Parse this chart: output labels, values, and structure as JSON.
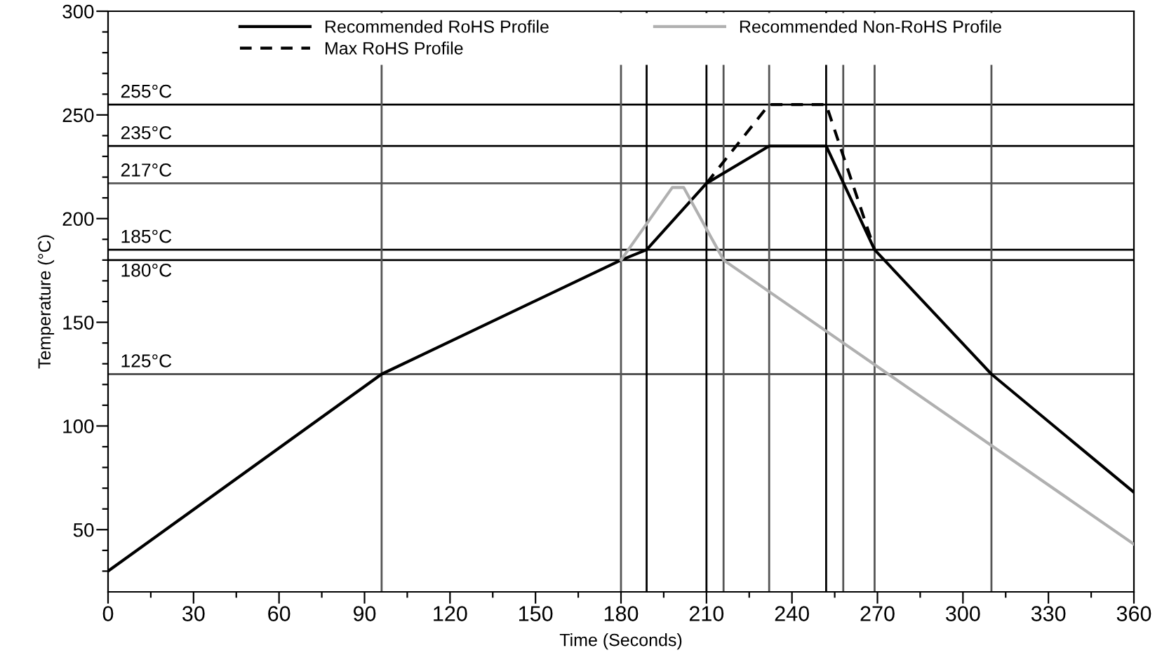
{
  "chart_data": {
    "type": "line",
    "xlabel": "Time (Seconds)",
    "ylabel": "Temperature (°C)",
    "xlim": [
      0,
      360
    ],
    "ylim": [
      20,
      300
    ],
    "xticks": [
      0,
      {
        "value": 15,
        "label": null
      },
      30,
      {
        "value": 45,
        "label": null
      },
      60,
      {
        "value": 75,
        "label": null
      },
      90,
      {
        "value": 105,
        "label": null
      },
      120,
      {
        "value": 135,
        "label": null
      },
      150,
      {
        "value": 165,
        "label": null
      },
      180,
      {
        "value": 195,
        "label": null
      },
      210,
      {
        "value": 225,
        "label": null
      },
      240,
      {
        "value": 255,
        "label": null
      },
      270,
      {
        "value": 285,
        "label": null
      },
      300,
      {
        "value": 315,
        "label": null
      },
      330,
      {
        "value": 345,
        "label": null
      },
      360
    ],
    "yticks": [
      {
        "value": 30,
        "label": null
      },
      {
        "value": 40,
        "label": null
      },
      50,
      {
        "value": 60,
        "label": null
      },
      {
        "value": 70,
        "label": null
      },
      {
        "value": 80,
        "label": null
      },
      {
        "value": 90,
        "label": null
      },
      100,
      {
        "value": 110,
        "label": null
      },
      {
        "value": 120,
        "label": null
      },
      {
        "value": 130,
        "label": null
      },
      {
        "value": 140,
        "label": null
      },
      150,
      {
        "value": 160,
        "label": null
      },
      {
        "value": 170,
        "label": null
      },
      {
        "value": 180,
        "label": null
      },
      {
        "value": 190,
        "label": null
      },
      200,
      {
        "value": 210,
        "label": null
      },
      {
        "value": 220,
        "label": null
      },
      {
        "value": 230,
        "label": null
      },
      {
        "value": 240,
        "label": null
      },
      250,
      {
        "value": 260,
        "label": null
      },
      {
        "value": 270,
        "label": null
      },
      {
        "value": 280,
        "label": null
      },
      {
        "value": 290,
        "label": null
      },
      300
    ],
    "grid": false,
    "legend": "top",
    "series": [
      {
        "name": "Recommended RoHS Profile",
        "color": "#000000",
        "line_style": "solid",
        "x": [
          0,
          96,
          180,
          189,
          210,
          232,
          252,
          269,
          310,
          360
        ],
        "values": [
          30,
          125,
          180,
          185,
          217,
          235,
          235,
          185,
          125,
          68
        ]
      },
      {
        "name": "Max RoHS Profile",
        "color": "#000000",
        "line_style": "dashed",
        "x": [
          210,
          232,
          252,
          269
        ],
        "values": [
          217,
          255,
          255,
          185
        ]
      },
      {
        "name": "Recommended Non-RoHS Profile",
        "color": "#b0b0b0",
        "line_style": "solid",
        "x": [
          180,
          198,
          202,
          216,
          360
        ],
        "values": [
          180,
          215,
          215,
          180,
          43
        ]
      }
    ],
    "ref_lines": [
      {
        "axis": "y",
        "value": 255,
        "label": "255°C",
        "color": "#000000"
      },
      {
        "axis": "y",
        "value": 235,
        "label": "235°C",
        "color": "#000000"
      },
      {
        "axis": "y",
        "value": 217,
        "label": "217°C",
        "color": "#555555"
      },
      {
        "axis": "y",
        "value": 185,
        "label": "185°C",
        "color": "#000000"
      },
      {
        "axis": "y",
        "value": 180,
        "label": "180°C",
        "color": "#000000"
      },
      {
        "axis": "y",
        "value": 125,
        "label": "125°C",
        "color": "#555555"
      },
      {
        "axis": "x",
        "value": 96,
        "color": "#555555"
      },
      {
        "axis": "x",
        "value": 180,
        "color": "#555555"
      },
      {
        "axis": "x",
        "value": 189,
        "color": "#000000"
      },
      {
        "axis": "x",
        "value": 210,
        "color": "#000000"
      },
      {
        "axis": "x",
        "value": 216,
        "color": "#555555"
      },
      {
        "axis": "x",
        "value": 232,
        "color": "#555555"
      },
      {
        "axis": "x",
        "value": 252,
        "color": "#000000"
      },
      {
        "axis": "x",
        "value": 258,
        "color": "#555555"
      },
      {
        "axis": "x",
        "value": 269,
        "color": "#555555"
      },
      {
        "axis": "x",
        "value": 310,
        "color": "#555555"
      }
    ]
  }
}
